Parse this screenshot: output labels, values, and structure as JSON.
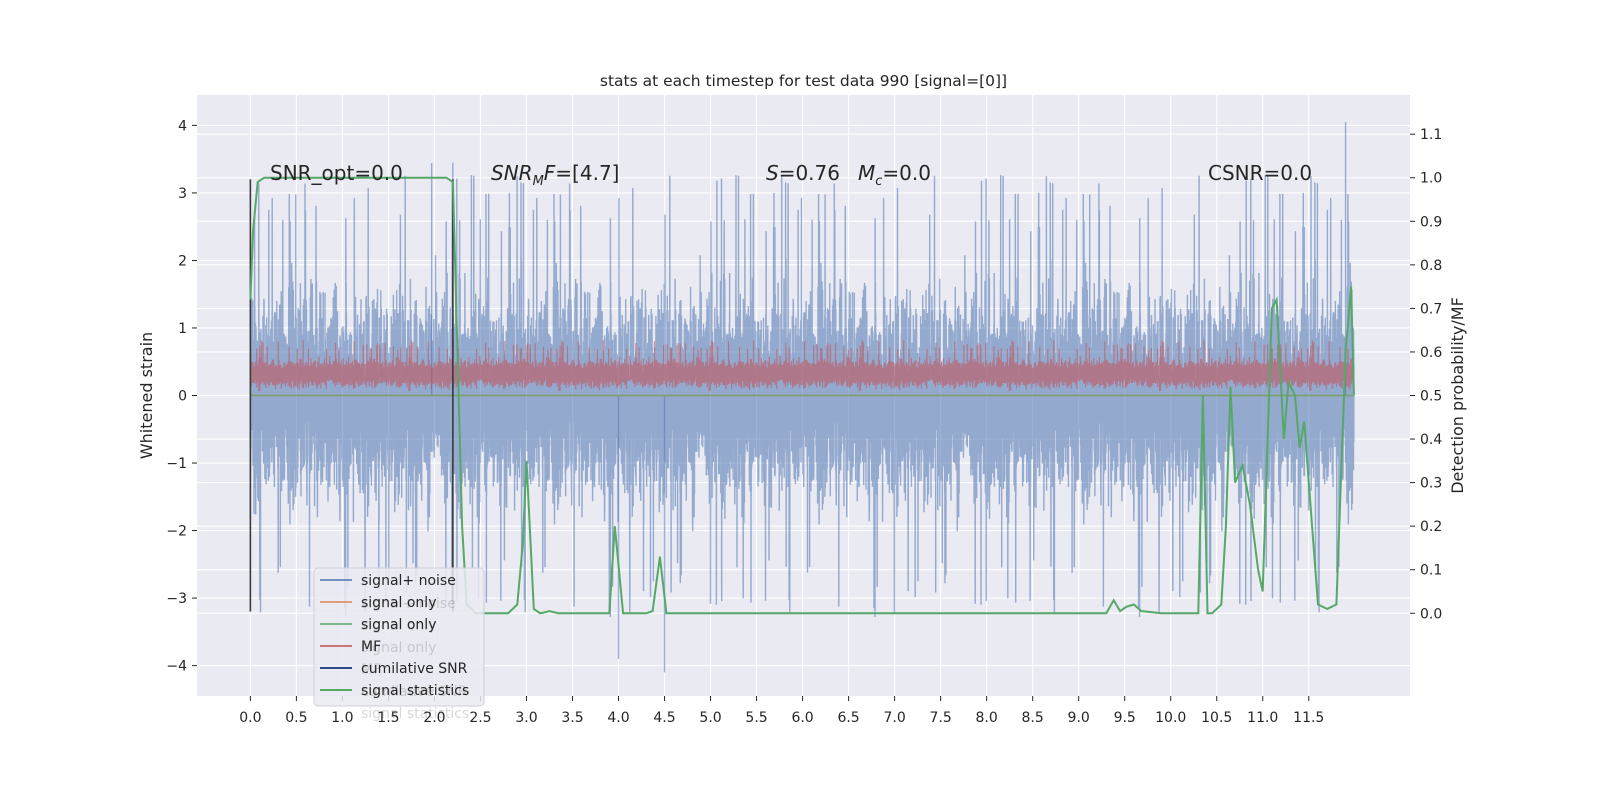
{
  "chart_data": {
    "type": "line",
    "title": "stats at each timestep for test data 990 [signal=[0]]",
    "xlabel": "",
    "ylabel": "Whitened strain",
    "y2label": "Detection probability/MF",
    "xlim": [
      -0.58,
      12.6
    ],
    "ylim": [
      -4.45,
      4.45
    ],
    "y2lim": [
      -0.19,
      1.19
    ],
    "x_ticks": [
      0.0,
      0.5,
      1.0,
      1.5,
      2.0,
      2.5,
      3.0,
      3.5,
      4.0,
      4.5,
      5.0,
      5.5,
      6.0,
      6.5,
      7.0,
      7.5,
      8.0,
      8.5,
      9.0,
      9.5,
      10.0,
      10.5,
      11.0,
      11.5
    ],
    "x_tick_labels": [
      "0.0",
      "0.5",
      "1.0",
      "1.5",
      "2.0",
      "2.5",
      "3.0",
      "3.5",
      "4.0",
      "4.5",
      "5.0",
      "5.5",
      "6.0",
      "6.5",
      "7.0",
      "7.5",
      "8.0",
      "8.5",
      "9.0",
      "9.5",
      "10.0",
      "10.5",
      "11.0",
      "11.5"
    ],
    "y_ticks": [
      -4,
      -3,
      -2,
      -1,
      0,
      1,
      2,
      3,
      4
    ],
    "y_tick_labels": [
      "−4",
      "−3",
      "−2",
      "−1",
      "0",
      "1",
      "2",
      "3",
      "4"
    ],
    "y2_ticks": [
      0.0,
      0.1,
      0.2,
      0.3,
      0.4,
      0.5,
      0.6,
      0.7,
      0.8,
      0.9,
      1.0,
      1.1
    ],
    "y2_tick_labels": [
      "0.0",
      "0.1",
      "0.2",
      "0.3",
      "0.4",
      "0.5",
      "0.6",
      "0.7",
      "0.8",
      "0.9",
      "1.0",
      "1.1"
    ],
    "grid": true,
    "legend_placement": "lower-left",
    "background": "#eaeaf2",
    "series": [
      {
        "name": "signal+ noise",
        "axis": "left",
        "color": "#4c72b0",
        "style": "dense-noise",
        "x_range": [
          0.0,
          11.99
        ],
        "typical_range": [
          -2.2,
          2.3
        ],
        "extremes": [
          -4.1,
          4.05
        ]
      },
      {
        "name": "signal only",
        "axis": "left",
        "color": "#dd8452",
        "style": "flat",
        "value": 0.0
      },
      {
        "name": "signal only",
        "axis": "left",
        "color": "#55a868",
        "style": "flat",
        "value": 0.0
      },
      {
        "name": "MF",
        "axis": "left",
        "color": "#c44e52",
        "style": "band-noise",
        "x_range": [
          0.0,
          11.99
        ],
        "typical_range": [
          0.05,
          0.6
        ],
        "extremes": [
          0.0,
          0.82
        ]
      },
      {
        "name": "cumilative SNR",
        "axis": "left",
        "color": "#4c72b0",
        "style": "vlines",
        "x": [
          0.0,
          2.2
        ],
        "from": -3.2,
        "to": 3.2
      },
      {
        "name": "signal statistics",
        "axis": "right",
        "color": "#55a868",
        "style": "line",
        "x": [
          0.0,
          0.03,
          0.08,
          0.15,
          1.0,
          2.0,
          2.13,
          2.2,
          2.25,
          2.3,
          2.35,
          2.45,
          2.6,
          2.8,
          2.9,
          2.96,
          3.0,
          3.08,
          3.15,
          3.25,
          3.35,
          3.45,
          3.9,
          3.96,
          4.05,
          4.3,
          4.37,
          4.45,
          4.52,
          4.6,
          5.0,
          9.3,
          9.38,
          9.45,
          9.52,
          9.6,
          9.68,
          9.9,
          10.0,
          10.2,
          10.3,
          10.35,
          10.4,
          10.45,
          10.55,
          10.6,
          10.65,
          10.7,
          10.78,
          10.86,
          10.95,
          11.0,
          11.1,
          11.15,
          11.23,
          11.28,
          11.35,
          11.4,
          11.45,
          11.5,
          11.6,
          11.7,
          11.8,
          11.9,
          11.96,
          11.99
        ],
        "y": [
          0.72,
          0.88,
          0.99,
          1.0,
          1.0,
          1.0,
          1.0,
          0.99,
          0.6,
          0.2,
          0.02,
          0.0,
          0.0,
          0.0,
          0.02,
          0.16,
          0.35,
          0.01,
          0.0,
          0.005,
          0.0,
          0.0,
          0.0,
          0.2,
          0.0,
          0.0,
          0.005,
          0.13,
          0.0,
          0.0,
          0.0,
          0.0,
          0.03,
          0.005,
          0.015,
          0.02,
          0.005,
          0.0,
          0.0,
          0.0,
          0.0,
          0.5,
          0.0,
          0.0,
          0.02,
          0.2,
          0.52,
          0.3,
          0.34,
          0.25,
          0.1,
          0.05,
          0.7,
          0.72,
          0.4,
          0.53,
          0.5,
          0.38,
          0.44,
          0.3,
          0.02,
          0.01,
          0.02,
          0.6,
          0.75,
          0.5
        ]
      }
    ],
    "annotations": {
      "snr_opt": "SNR_opt=0.0",
      "snr_mf_main": "SNR",
      "snr_mf_sub": "M",
      "snr_mf_italic": "F",
      "snr_mf_value": "=[4.7]",
      "s_label": "S",
      "s_value": "=0.76",
      "mc_main": "M",
      "mc_sub": "c",
      "mc_value": "=0.0",
      "csnr": "CSNR=0.0"
    },
    "legend_ghost_entries": [
      "signal+ noise",
      "signal only",
      "signal only",
      "MF",
      "cumilative SNR",
      "signal statistics"
    ]
  }
}
